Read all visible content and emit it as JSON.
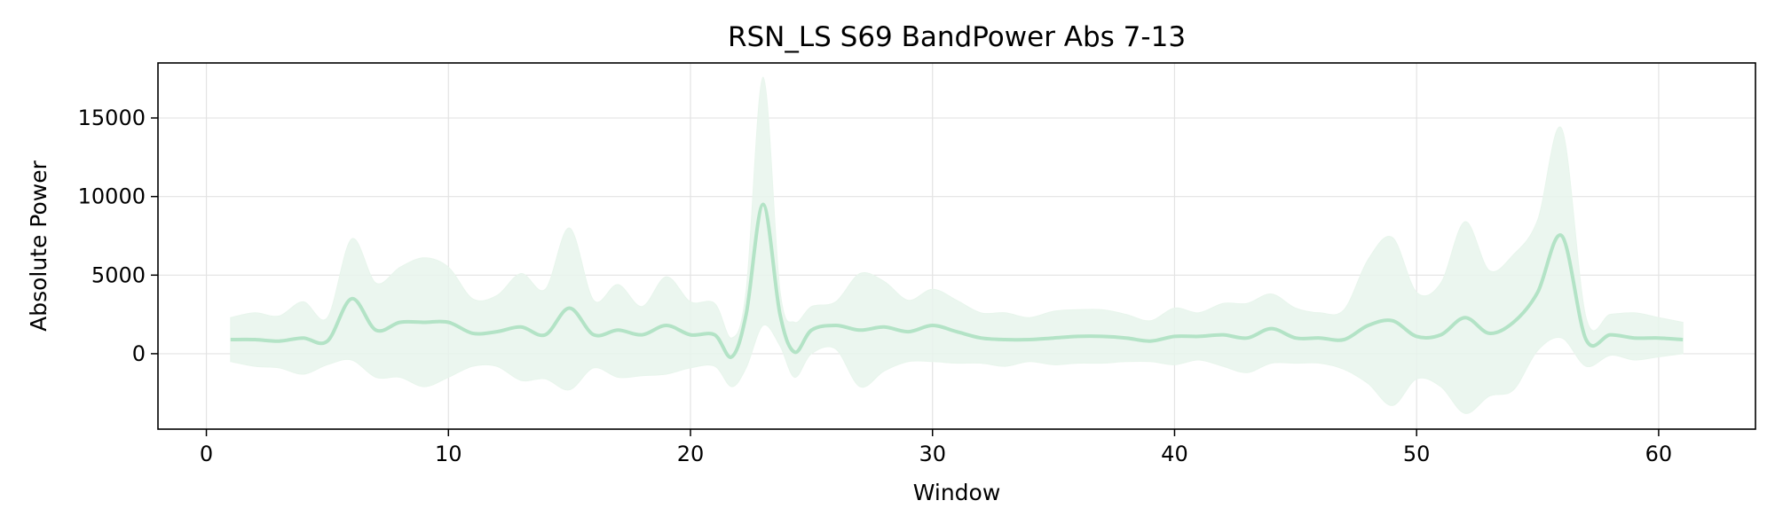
{
  "chart_data": {
    "type": "line",
    "title": "RSN_LS S69 BandPower Abs 7-13",
    "xlabel": "Window",
    "ylabel": "Absolute Power",
    "xlim": [
      -2,
      64
    ],
    "ylim": [
      -4800,
      18500
    ],
    "xticks": [
      0,
      10,
      20,
      30,
      40,
      50,
      60
    ],
    "yticks": [
      0,
      5000,
      10000,
      15000
    ],
    "grid": true,
    "colors": {
      "line": "#b3e3c6",
      "band": "#e8f5ec",
      "grid": "#e3e3e3"
    },
    "series": [
      {
        "x": [
          1,
          2,
          3,
          4,
          5,
          6,
          7,
          8,
          9,
          10,
          11,
          12,
          13,
          14,
          15,
          16,
          17,
          18,
          19,
          20,
          21,
          21.7,
          22.3,
          23,
          23.7,
          24.3,
          25,
          26,
          27,
          28,
          29,
          30,
          31,
          32,
          33,
          34,
          35,
          36,
          37,
          38,
          39,
          40,
          41,
          42,
          43,
          44,
          45,
          46,
          47,
          48,
          49,
          50,
          51,
          52,
          53,
          54,
          55,
          56,
          57,
          58,
          59,
          60,
          61
        ],
        "y": [
          900,
          900,
          800,
          1000,
          800,
          3500,
          1500,
          2000,
          2000,
          2000,
          1300,
          1400,
          1700,
          1200,
          2900,
          1200,
          1500,
          1200,
          1800,
          1200,
          1200,
          -200,
          2500,
          9500,
          2500,
          100,
          1500,
          1800,
          1500,
          1700,
          1400,
          1800,
          1400,
          1000,
          900,
          900,
          1000,
          1100,
          1100,
          1000,
          800,
          1100,
          1100,
          1200,
          1000,
          1600,
          1000,
          1000,
          900,
          1800,
          2100,
          1100,
          1200,
          2300,
          1300,
          2000,
          3900,
          7500,
          900,
          1200,
          1000,
          1000,
          900
        ],
        "upper": [
          2300,
          2600,
          2400,
          3300,
          2300,
          7300,
          4500,
          5500,
          6100,
          5500,
          3500,
          3700,
          5100,
          4100,
          8000,
          3400,
          4400,
          3000,
          4900,
          3300,
          3200,
          1000,
          4000,
          17600,
          4000,
          2000,
          3000,
          3300,
          5100,
          4600,
          3400,
          4100,
          3400,
          2600,
          2600,
          2300,
          2700,
          2800,
          2800,
          2500,
          2100,
          2900,
          2600,
          3200,
          3200,
          3800,
          2900,
          2600,
          2800,
          6000,
          7400,
          3900,
          4500,
          8400,
          5300,
          6300,
          8500,
          14300,
          2300,
          2500,
          2600,
          2300,
          2000
        ],
        "lower": [
          -500,
          -800,
          -900,
          -1300,
          -700,
          -400,
          -1500,
          -1500,
          -2100,
          -1500,
          -800,
          -800,
          -1700,
          -1600,
          -2300,
          -900,
          -1500,
          -1400,
          -1300,
          -900,
          -800,
          -2100,
          -900,
          1800,
          500,
          -1500,
          0,
          300,
          -2100,
          -1100,
          -500,
          -500,
          -600,
          -600,
          -800,
          -500,
          -700,
          -600,
          -600,
          -500,
          -500,
          -700,
          -400,
          -800,
          -1200,
          -600,
          -600,
          -600,
          -1000,
          -1900,
          -3300,
          -1600,
          -2100,
          -3800,
          -2700,
          -2300,
          200,
          1000,
          -800,
          -100,
          -400,
          -200,
          0
        ]
      }
    ]
  }
}
